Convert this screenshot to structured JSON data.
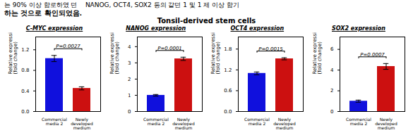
{
  "title": "Tonsil-derived stem cells",
  "annotations": [
    "는 90% 이상 함로하였 던    NANOG, OCT4, SOX2 등의 같던 1 및 1 제 이상 함기",
    "하는 것으로 확인되었음."
  ],
  "chart_data": [
    {
      "type": "bar",
      "title": "C-MYC expression",
      "ylabel": "Relative expression\n(fold change)",
      "categories": [
        "Commercial\nmedia 2",
        "Newly\ndeveloped\nmedium"
      ],
      "values": [
        1.03,
        0.45
      ],
      "errors": [
        0.06,
        0.03
      ],
      "colors": [
        "#1010dd",
        "#cc1010"
      ],
      "ylim": [
        0,
        1.45
      ],
      "yticks": [
        {
          "value": 0,
          "label": "0.0"
        },
        0.4,
        0.8,
        1.2
      ],
      "annotations": [
        "P=0.0027"
      ]
    },
    {
      "type": "bar",
      "title": "NANOG expression",
      "ylabel": "Relative expression\n(fold change)",
      "categories": [
        "Commercial\nmedia 2",
        "Newly\ndeveloped\nmedium"
      ],
      "values": [
        1.0,
        3.25
      ],
      "errors": [
        0.05,
        0.1
      ],
      "colors": [
        "#1010dd",
        "#cc1010"
      ],
      "ylim": [
        0,
        4.6
      ],
      "yticks": [
        0,
        1,
        2,
        3,
        4
      ],
      "annotations": [
        "P=0.0001"
      ]
    },
    {
      "type": "bar",
      "title": "OCT4 expression",
      "ylabel": "Relative expression\n(fold change)",
      "categories": [
        "Commercial\nmedia 2",
        "Newly\ndeveloped\nmedium"
      ],
      "values": [
        1.1,
        1.52
      ],
      "errors": [
        0.04,
        0.03
      ],
      "colors": [
        "#1010dd",
        "#cc1010"
      ],
      "ylim": [
        0,
        2.15
      ],
      "yticks": [
        {
          "value": 0,
          "label": "0.0"
        },
        0.6,
        1.2,
        1.8
      ],
      "annotations": [
        "P=0.0015"
      ]
    },
    {
      "type": "bar",
      "title": "SOX2 expression",
      "ylabel": "Relative expression\n(fold change)",
      "categories": [
        "Commercial\nmedia 2",
        "Newly\ndeveloped\nmedium"
      ],
      "values": [
        1.0,
        4.35
      ],
      "errors": [
        0.1,
        0.28
      ],
      "colors": [
        "#1010dd",
        "#cc1010"
      ],
      "ylim": [
        0,
        7.2
      ],
      "yticks": [
        0,
        2,
        4,
        6
      ],
      "annotations": [
        "P=0.0007"
      ]
    }
  ]
}
